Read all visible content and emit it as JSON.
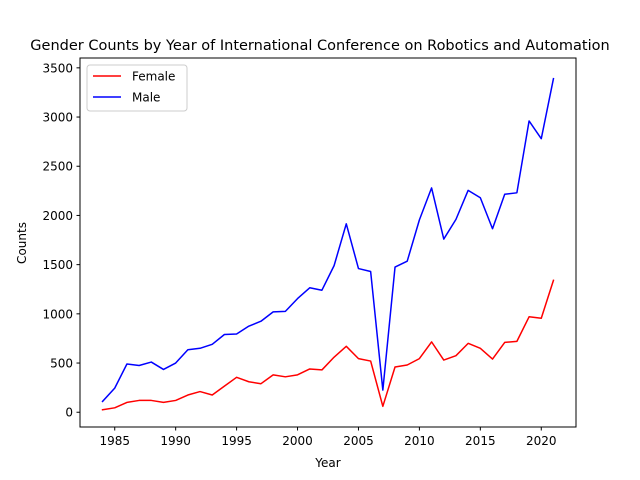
{
  "chart_data": {
    "type": "line",
    "title": "Gender Counts by Year of International Conference on Robotics and Automation",
    "xlabel": "Year",
    "ylabel": "Counts",
    "xlim": [
      1982.15,
      2022.85
    ],
    "ylim": [
      -150,
      3600
    ],
    "xticks": [
      1985,
      1990,
      1995,
      2000,
      2005,
      2010,
      2015,
      2020
    ],
    "yticks": [
      0,
      500,
      1000,
      1500,
      2000,
      2500,
      3000,
      3500
    ],
    "legend_position": "top-left",
    "grid": false,
    "x": [
      1984,
      1985,
      1986,
      1987,
      1988,
      1989,
      1990,
      1991,
      1992,
      1993,
      1994,
      1995,
      1996,
      1997,
      1998,
      1999,
      2000,
      2001,
      2002,
      2003,
      2004,
      2005,
      2006,
      2007,
      2008,
      2009,
      2010,
      2011,
      2012,
      2013,
      2014,
      2015,
      2016,
      2017,
      2018,
      2019,
      2020,
      2021
    ],
    "series": [
      {
        "name": "Female",
        "color": "#ff0000",
        "values": [
          25,
          45,
          100,
          120,
          120,
          100,
          120,
          175,
          210,
          175,
          265,
          355,
          310,
          290,
          380,
          360,
          380,
          440,
          430,
          560,
          670,
          545,
          520,
          60,
          460,
          480,
          545,
          715,
          530,
          575,
          700,
          650,
          540,
          710,
          720,
          970,
          955,
          1340
        ]
      },
      {
        "name": "Male",
        "color": "#0000ff",
        "values": [
          110,
          245,
          490,
          475,
          510,
          435,
          500,
          635,
          650,
          690,
          790,
          795,
          875,
          925,
          1020,
          1025,
          1155,
          1265,
          1240,
          1490,
          1915,
          1460,
          1430,
          225,
          1475,
          1535,
          1955,
          2280,
          1760,
          1960,
          2255,
          2180,
          1865,
          2215,
          2230,
          2960,
          2780,
          3390
        ]
      }
    ]
  }
}
